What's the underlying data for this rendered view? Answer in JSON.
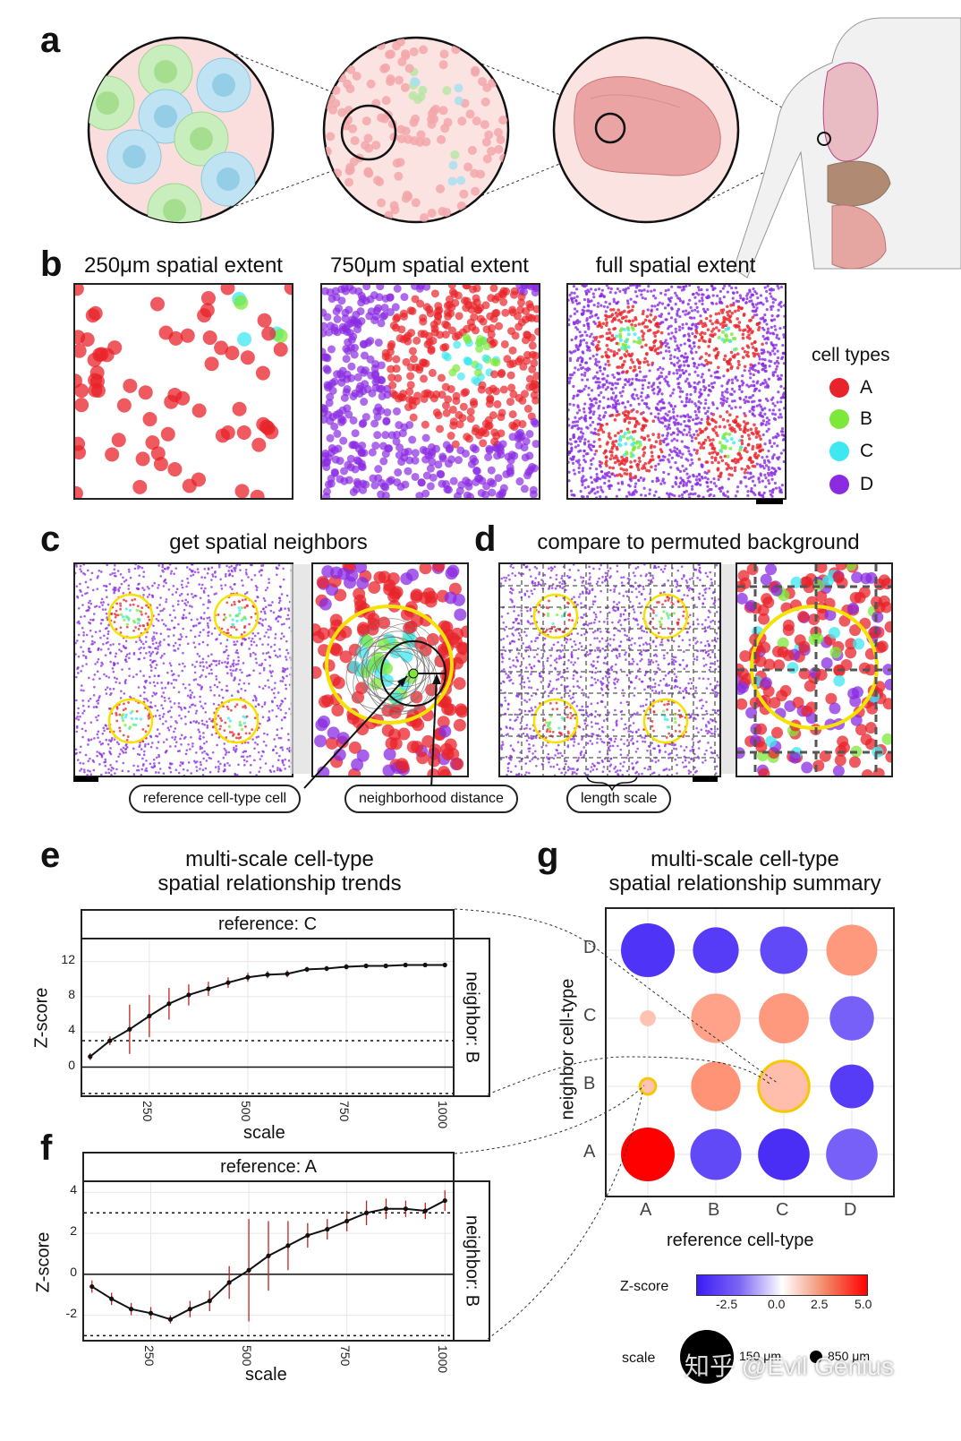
{
  "panels": {
    "a": "a",
    "b": "b",
    "c": "c",
    "d": "d",
    "e": "e",
    "f": "f",
    "g": "g"
  },
  "panel_b": {
    "titles": [
      "250μm spatial extent",
      "750μm spatial extent",
      "full spatial extent"
    ],
    "legend_title": "cell types",
    "cell_types": [
      {
        "label": "A",
        "color": "#e8232a"
      },
      {
        "label": "B",
        "color": "#7de83a"
      },
      {
        "label": "C",
        "color": "#3ee8f0"
      },
      {
        "label": "D",
        "color": "#8a2be2"
      }
    ]
  },
  "panel_c": {
    "title": "get spatial neighbors",
    "callouts": [
      "reference cell-type cell",
      "neighborhood distance"
    ]
  },
  "panel_d": {
    "title": "compare to permuted background",
    "callouts": [
      "length scale"
    ]
  },
  "panel_e": {
    "title_line1": "multi-scale cell-type",
    "title_line2": "spatial relationship trends"
  },
  "panel_g": {
    "title_line1": "multi-scale cell-type",
    "title_line2": "spatial relationship summary"
  },
  "watermark": "知乎 @Evil Genius",
  "chart_data": [
    {
      "id": "e",
      "type": "line",
      "strip_top": "reference: C",
      "strip_right": "neighbor: B",
      "xlabel": "scale",
      "ylabel": "Z-score",
      "xlim": [
        80,
        1020
      ],
      "ylim": [
        -3.2,
        14.5
      ],
      "xticks": [
        250,
        500,
        750,
        1000
      ],
      "yticks": [
        0,
        4,
        8,
        12
      ],
      "thresholds": [
        3,
        -3
      ],
      "x": [
        100,
        150,
        200,
        250,
        300,
        350,
        400,
        450,
        500,
        550,
        600,
        650,
        700,
        750,
        800,
        850,
        900,
        950,
        1000
      ],
      "y": [
        1.2,
        3.0,
        4.3,
        5.8,
        7.2,
        8.2,
        8.9,
        9.6,
        10.2,
        10.5,
        10.6,
        11.1,
        11.2,
        11.4,
        11.5,
        11.5,
        11.6,
        11.6,
        11.6
      ],
      "err": [
        0.4,
        0.5,
        2.8,
        2.4,
        1.8,
        1.2,
        0.8,
        0.6,
        0.5,
        0.4,
        0.4,
        0.3,
        0.3,
        0.3,
        0.2,
        0.2,
        0.2,
        0.2,
        0.2
      ]
    },
    {
      "id": "f",
      "type": "line",
      "strip_top": "reference: A",
      "strip_right": "neighbor: B",
      "xlabel": "scale",
      "ylabel": "Z-score",
      "xlim": [
        80,
        1020
      ],
      "ylim": [
        -3.2,
        4.5
      ],
      "xticks": [
        250,
        500,
        750,
        1000
      ],
      "yticks": [
        -2,
        0,
        2,
        4
      ],
      "thresholds": [
        3,
        -3
      ],
      "x": [
        100,
        150,
        200,
        250,
        300,
        350,
        400,
        450,
        500,
        550,
        600,
        650,
        700,
        750,
        800,
        850,
        900,
        950,
        1000
      ],
      "y": [
        -0.6,
        -1.2,
        -1.7,
        -1.9,
        -2.2,
        -1.7,
        -1.3,
        -0.4,
        0.2,
        0.9,
        1.4,
        1.9,
        2.2,
        2.6,
        3.0,
        3.2,
        3.2,
        3.1,
        3.6
      ],
      "err": [
        0.3,
        0.3,
        0.3,
        0.3,
        0.2,
        0.4,
        0.5,
        0.8,
        2.5,
        1.7,
        1.2,
        0.6,
        0.5,
        0.5,
        0.6,
        0.5,
        0.4,
        0.4,
        0.5
      ]
    },
    {
      "id": "g",
      "type": "scatter",
      "xlabel": "reference cell-type",
      "ylabel": "neighbor cell-type",
      "x_categories": [
        "A",
        "B",
        "C",
        "D"
      ],
      "y_categories": [
        "A",
        "B",
        "C",
        "D"
      ],
      "colorbar_title": "Z-score",
      "colorbar_range": [
        -5,
        5
      ],
      "colorbar_ticks": [
        "-2.5",
        "0.0",
        "2.5",
        "5.0"
      ],
      "size_title": "scale",
      "size_labels": [
        "150 μm",
        "850 μm"
      ],
      "points": [
        {
          "ref": "A",
          "nbr": "D",
          "z": -4.5,
          "scale": 900,
          "hl": false
        },
        {
          "ref": "B",
          "nbr": "D",
          "z": -4.3,
          "scale": 750,
          "hl": false
        },
        {
          "ref": "C",
          "nbr": "D",
          "z": -4.0,
          "scale": 780,
          "hl": false
        },
        {
          "ref": "D",
          "nbr": "D",
          "z": 3.4,
          "scale": 850,
          "hl": false
        },
        {
          "ref": "A",
          "nbr": "C",
          "z": 2.0,
          "scale": 180,
          "hl": false
        },
        {
          "ref": "B",
          "nbr": "C",
          "z": 3.1,
          "scale": 820,
          "hl": false
        },
        {
          "ref": "C",
          "nbr": "C",
          "z": 3.4,
          "scale": 830,
          "hl": false
        },
        {
          "ref": "D",
          "nbr": "C",
          "z": -3.5,
          "scale": 720,
          "hl": false
        },
        {
          "ref": "A",
          "nbr": "B",
          "z": 2.0,
          "scale": 180,
          "hl": true
        },
        {
          "ref": "B",
          "nbr": "B",
          "z": 3.6,
          "scale": 820,
          "hl": false
        },
        {
          "ref": "C",
          "nbr": "B",
          "z": 2.2,
          "scale": 840,
          "hl": true
        },
        {
          "ref": "D",
          "nbr": "B",
          "z": -4.3,
          "scale": 710,
          "hl": false
        },
        {
          "ref": "A",
          "nbr": "A",
          "z": 5.0,
          "scale": 900,
          "hl": false
        },
        {
          "ref": "B",
          "nbr": "A",
          "z": -4.0,
          "scale": 850,
          "hl": false
        },
        {
          "ref": "C",
          "nbr": "A",
          "z": -4.6,
          "scale": 860,
          "hl": false
        },
        {
          "ref": "D",
          "nbr": "A",
          "z": -3.5,
          "scale": 860,
          "hl": false
        }
      ]
    }
  ]
}
